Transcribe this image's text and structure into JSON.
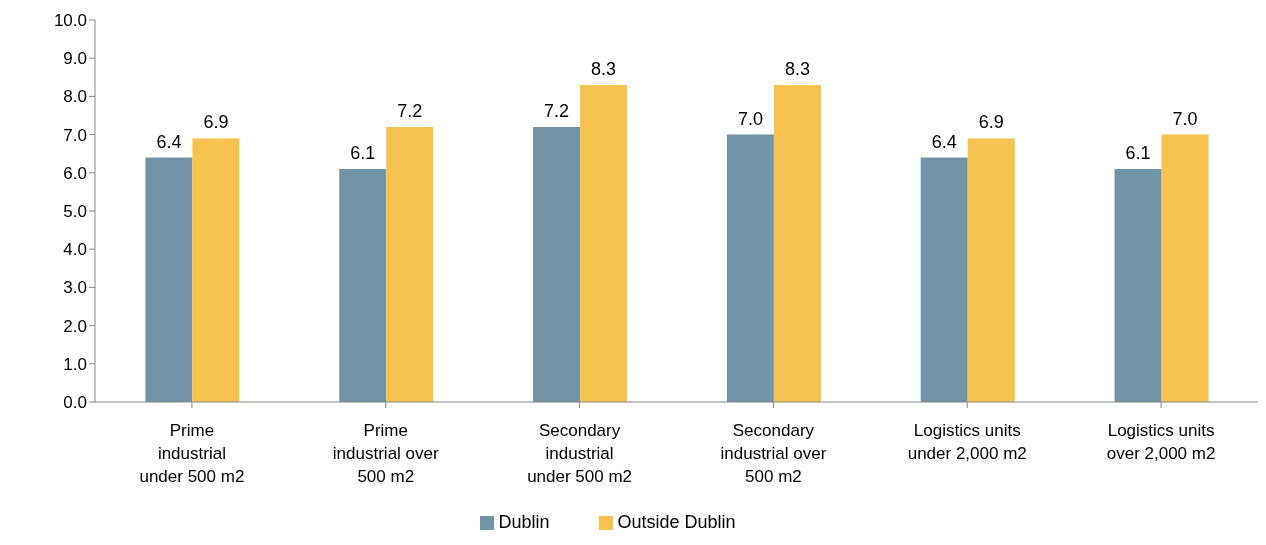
{
  "chart_data": {
    "type": "bar",
    "categories": [
      "Prime industrial under 500 m2",
      "Prime industrial over 500 m2",
      "Secondary industrial under 500 m2",
      "Secondary industrial over 500 m2",
      "Logistics units under 2,000 m2",
      "Logistics units over 2,000 m2"
    ],
    "series": [
      {
        "name": "Dublin",
        "color": "#7193a6",
        "values": [
          6.4,
          6.1,
          7.2,
          7.0,
          6.4,
          6.1
        ],
        "value_labels": [
          "6.4",
          "6.1",
          "7.2",
          "7.0",
          "6.4",
          "6.1"
        ]
      },
      {
        "name": "Outside Dublin",
        "color": "#f6c250",
        "values": [
          6.9,
          7.2,
          8.3,
          8.3,
          6.9,
          7.0
        ],
        "value_labels": [
          "6.9",
          "7.2",
          "8.3",
          "8.3",
          "6.9",
          "7.0"
        ]
      }
    ],
    "ylim": [
      0,
      10
    ],
    "yticks": [
      {
        "value": 0,
        "label": "0.0"
      },
      {
        "value": 1,
        "label": "1.0"
      },
      {
        "value": 2,
        "label": "2.0"
      },
      {
        "value": 3,
        "label": "3.0"
      },
      {
        "value": 4,
        "label": "4.0"
      },
      {
        "value": 5,
        "label": "5.0"
      },
      {
        "value": 6,
        "label": "6.0"
      },
      {
        "value": 7,
        "label": "7.0"
      },
      {
        "value": 8,
        "label": "8.0"
      },
      {
        "value": 9,
        "label": "9.0"
      },
      {
        "value": 10,
        "label": "10.0"
      }
    ],
    "grid": false,
    "legend": "bottom"
  }
}
